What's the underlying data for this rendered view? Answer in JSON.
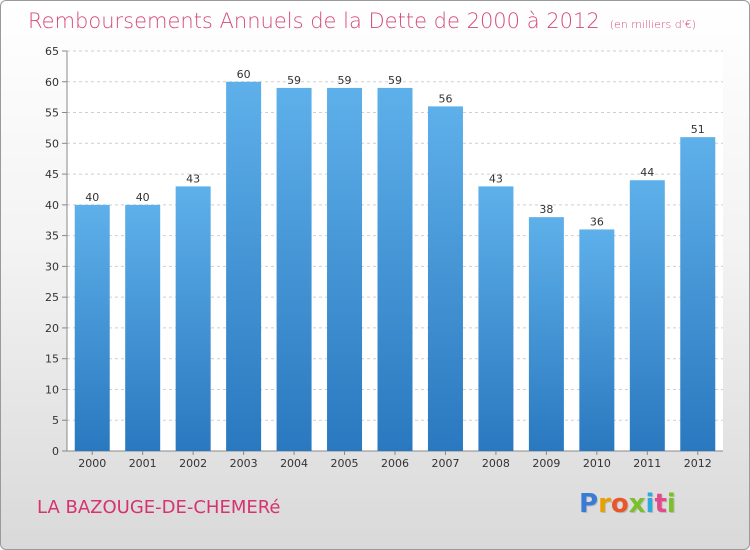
{
  "header": {
    "title": "Remboursements Annuels de la Dette de 2000 à 2012",
    "unit": "(en milliers d'€)"
  },
  "footer": {
    "commune": "LA BAZOUGE-DE-CHEMERé",
    "brand_letters": [
      {
        "ch": "P",
        "color": "#3a7bd5"
      },
      {
        "ch": "r",
        "color": "#e6a100"
      },
      {
        "ch": "o",
        "color": "#e8562a"
      },
      {
        "ch": "x",
        "color": "#7bbf2a"
      },
      {
        "ch": "i",
        "color": "#2ea9de"
      },
      {
        "ch": "t",
        "color": "#e24a8a"
      },
      {
        "ch": "i",
        "color": "#7bbf2a"
      }
    ]
  },
  "colors": {
    "title": "#d64a7c",
    "bar_top": "#5eb0ea",
    "bar_bottom": "#2a78bf",
    "axis_text": "#333333"
  },
  "chart_data": {
    "type": "bar",
    "categories": [
      "2000",
      "2001",
      "2002",
      "2003",
      "2004",
      "2005",
      "2006",
      "2007",
      "2008",
      "2009",
      "2010",
      "2011",
      "2012"
    ],
    "values": [
      40,
      40,
      43,
      60,
      59,
      59,
      59,
      56,
      43,
      38,
      36,
      44,
      51
    ],
    "title": "Remboursements Annuels de la Dette de 2000 à 2012",
    "xlabel": "",
    "ylabel": "",
    "ylim": [
      0,
      65
    ],
    "yticks": [
      0,
      5,
      10,
      15,
      20,
      25,
      30,
      35,
      40,
      45,
      50,
      55,
      60,
      65
    ],
    "grid": true,
    "data_labels": true
  }
}
